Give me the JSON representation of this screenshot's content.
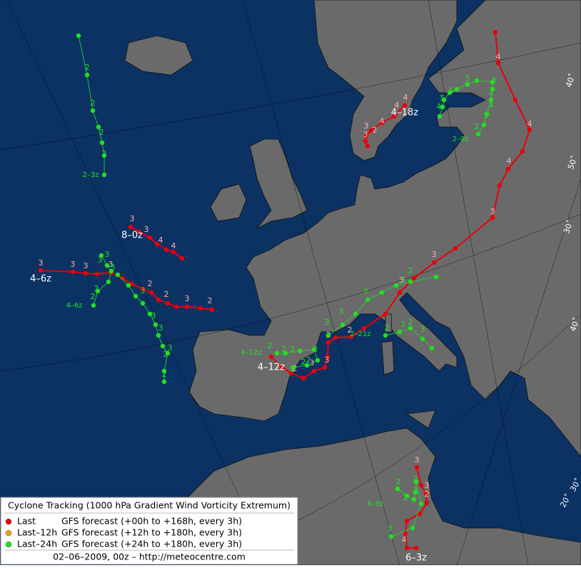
{
  "map_title": "Cyclone Tracking (1000 hPa Gradient Wind Vorticity Extremum)",
  "legend": [
    {
      "name": "Last",
      "description": "GFS forecast (+00h to +168h, every 3h)",
      "color": "#e8000b"
    },
    {
      "name": "Last–12h",
      "description": "GFS forecast (+12h to +180h, every 3h)",
      "color": "#f0a020"
    },
    {
      "name": "Last–24h",
      "description": "GFS forecast (+24h to +180h, every 3h)",
      "color": "#22e022"
    }
  ],
  "footer": "02–06–2009, 00z – http://meteocentre.com",
  "graticule_labels": [
    "40˚",
    "50˚",
    "30˚",
    "40˚",
    "30˚",
    "20˚"
  ],
  "tracks": [
    {
      "label": "4–18z",
      "color": "#e8000b",
      "text_color": "#ffffff",
      "point_labels": [
        "4",
        "4",
        "4",
        "2",
        "3",
        "3"
      ]
    },
    {
      "label": "4–12z",
      "color": "#e8000b",
      "text_color": "#ffffff",
      "point_labels": [
        "4",
        "4",
        "4",
        "3",
        "3",
        "3",
        "2",
        "2",
        "3",
        "3",
        "2"
      ]
    },
    {
      "label": "8–0z",
      "color": "#e8000b",
      "text_color": "#ffffff",
      "point_labels": [
        "3",
        "3",
        "4",
        "4"
      ]
    },
    {
      "label": "4–6z",
      "color": "#e8000b",
      "text_color": "#ffffff",
      "point_labels": [
        "3",
        "3",
        "3",
        "3",
        "2",
        "2",
        "3",
        "2"
      ]
    },
    {
      "label": "6–3z",
      "color": "#e8000b",
      "text_color": "#ffffff",
      "point_labels": [
        "3",
        "3",
        "2",
        "4"
      ]
    },
    {
      "label": "2–3z",
      "color": "#22e022",
      "text_color": "#22e022",
      "point_labels": [
        "2",
        "2",
        "2",
        "2"
      ]
    },
    {
      "label": "4–6z",
      "color": "#22e022",
      "text_color": "#22e022",
      "point_labels": [
        "3",
        "3",
        "3",
        "3",
        "2",
        "3",
        "3",
        "3",
        "3",
        "2",
        "2"
      ]
    },
    {
      "label": "2–9z",
      "color": "#22e022",
      "text_color": "#22e022",
      "point_labels": [
        "5",
        "5",
        "5",
        "5",
        "4",
        "4",
        "4",
        "3",
        "2"
      ]
    },
    {
      "label": "4–12z",
      "color": "#22e022",
      "text_color": "#22e022",
      "point_labels": [
        "2",
        "2",
        "2",
        "2",
        "2",
        "2",
        "2"
      ]
    },
    {
      "label": "2–21z",
      "color": "#22e022",
      "text_color": "#22e022",
      "point_labels": [
        "3",
        "3",
        "3",
        "3",
        "2",
        "2",
        "2",
        "2",
        "3"
      ]
    },
    {
      "label": "6–9z",
      "color": "#22e022",
      "text_color": "#22e022",
      "point_labels": [
        "2",
        "2",
        "2",
        "2",
        "3"
      ]
    }
  ]
}
